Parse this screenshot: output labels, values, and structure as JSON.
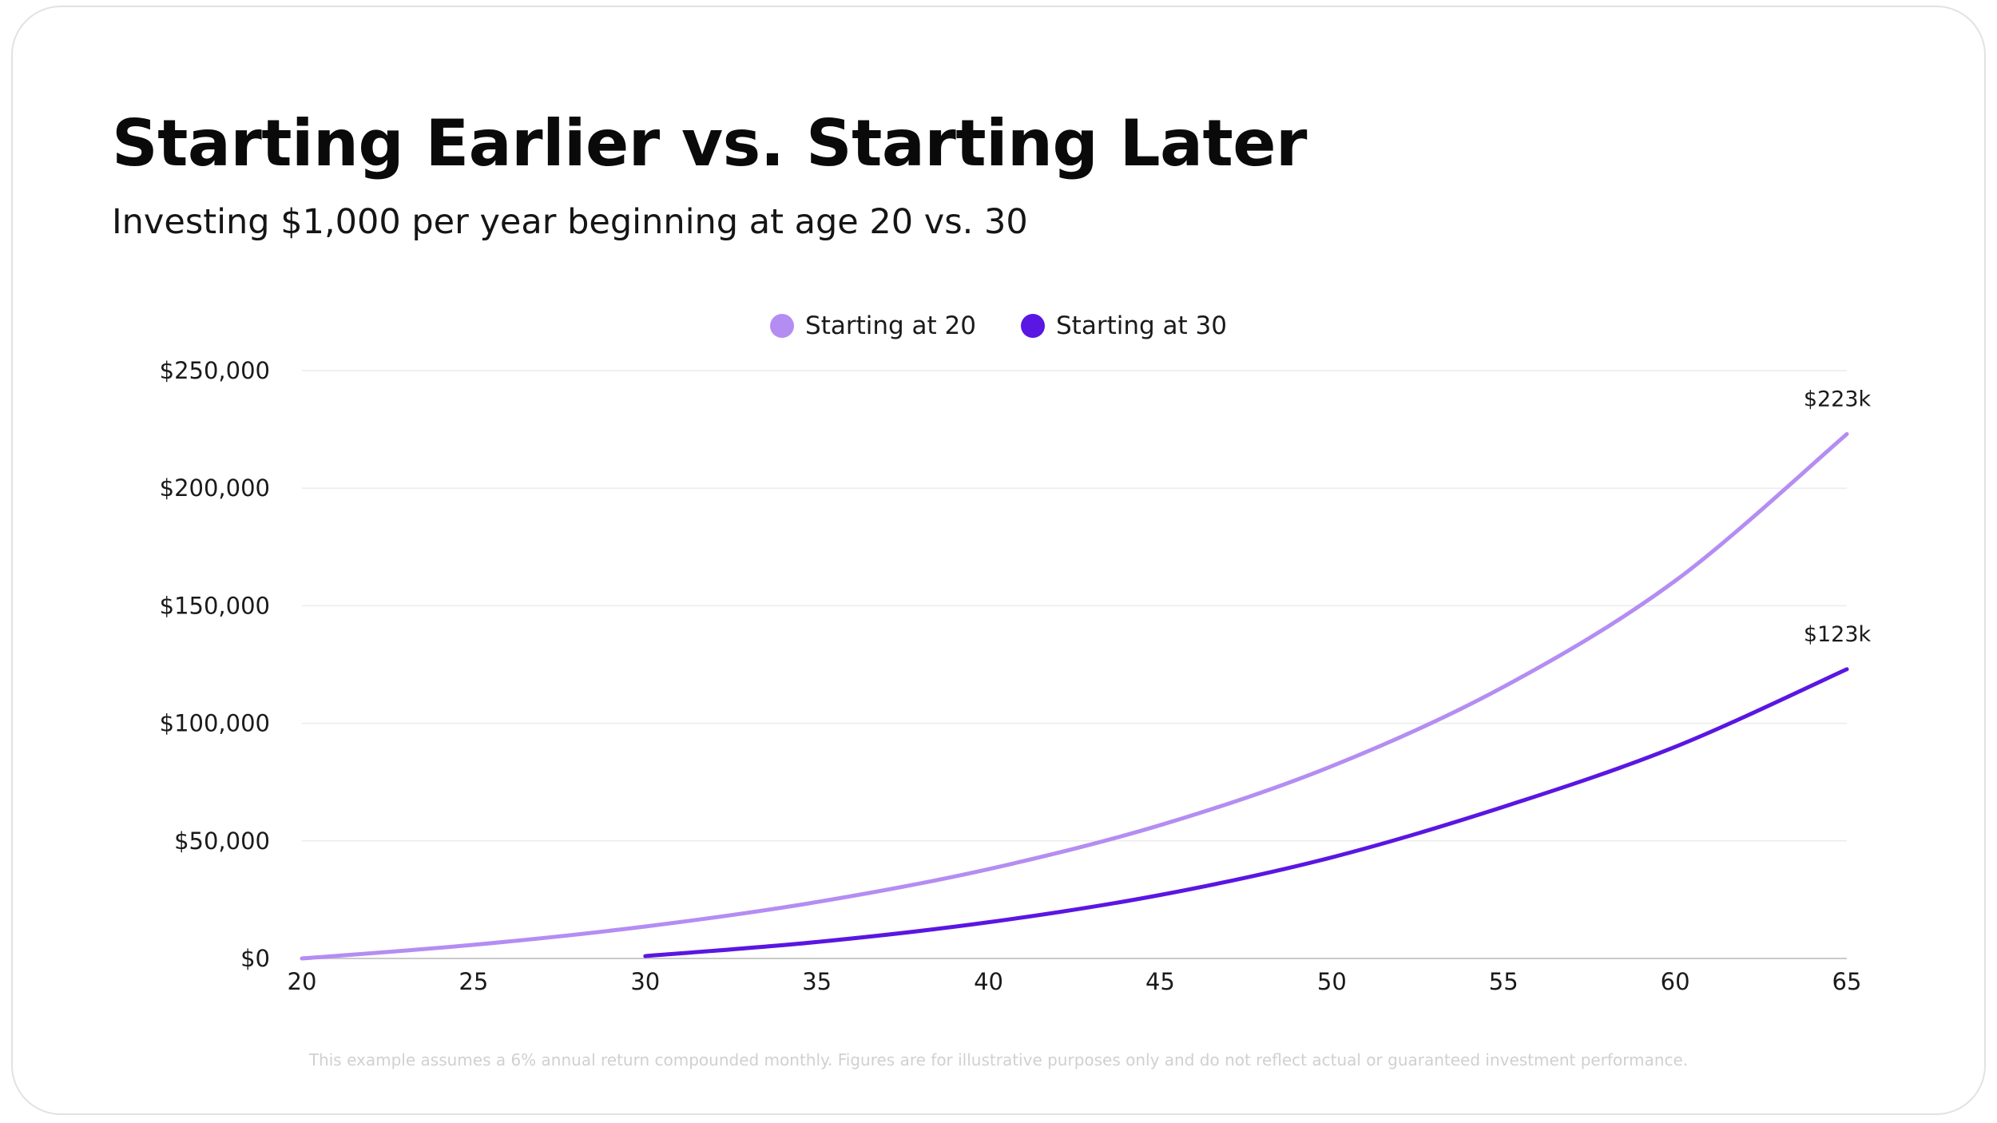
{
  "chart_data": {
    "type": "line",
    "title": "Starting Earlier vs. Starting Later",
    "subtitle": "Investing $1,000 per year beginning at age 20 vs. 30",
    "xlabel": "",
    "ylabel": "",
    "x": [
      20,
      25,
      30,
      35,
      40,
      45,
      50,
      55,
      60,
      65
    ],
    "xlim": [
      20,
      65
    ],
    "ylim": [
      0,
      250000
    ],
    "x_tick_labels": [
      "20",
      "25",
      "30",
      "35",
      "40",
      "45",
      "50",
      "55",
      "60",
      "65"
    ],
    "y_ticks": [
      0,
      50000,
      100000,
      150000,
      200000,
      250000
    ],
    "y_tick_labels": [
      "$0",
      "$50,000",
      "$100,000",
      "$150,000",
      "$200,000",
      "$250,000"
    ],
    "grid": "horizontal",
    "legend_position": "top-center",
    "series": [
      {
        "name": "Starting at 20",
        "color": "#b48df2",
        "x": [
          20,
          25,
          30,
          35,
          40,
          45,
          50,
          55,
          60,
          65
        ],
        "values": [
          0,
          5800,
          13600,
          24000,
          38000,
          56700,
          81800,
          115500,
          160600,
          223000
        ],
        "end_label": "$223k"
      },
      {
        "name": "Starting at 30",
        "color": "#5a16e2",
        "x": [
          30,
          35,
          40,
          45,
          50,
          55,
          60,
          65
        ],
        "values": [
          1000,
          7000,
          15400,
          27000,
          43000,
          64500,
          90000,
          123000
        ],
        "end_label": "$123k"
      }
    ],
    "footnote": "This example assumes a 6% annual return compounded monthly. Figures are for illustrative purposes only and do not reflect actual or guaranteed investment performance."
  }
}
